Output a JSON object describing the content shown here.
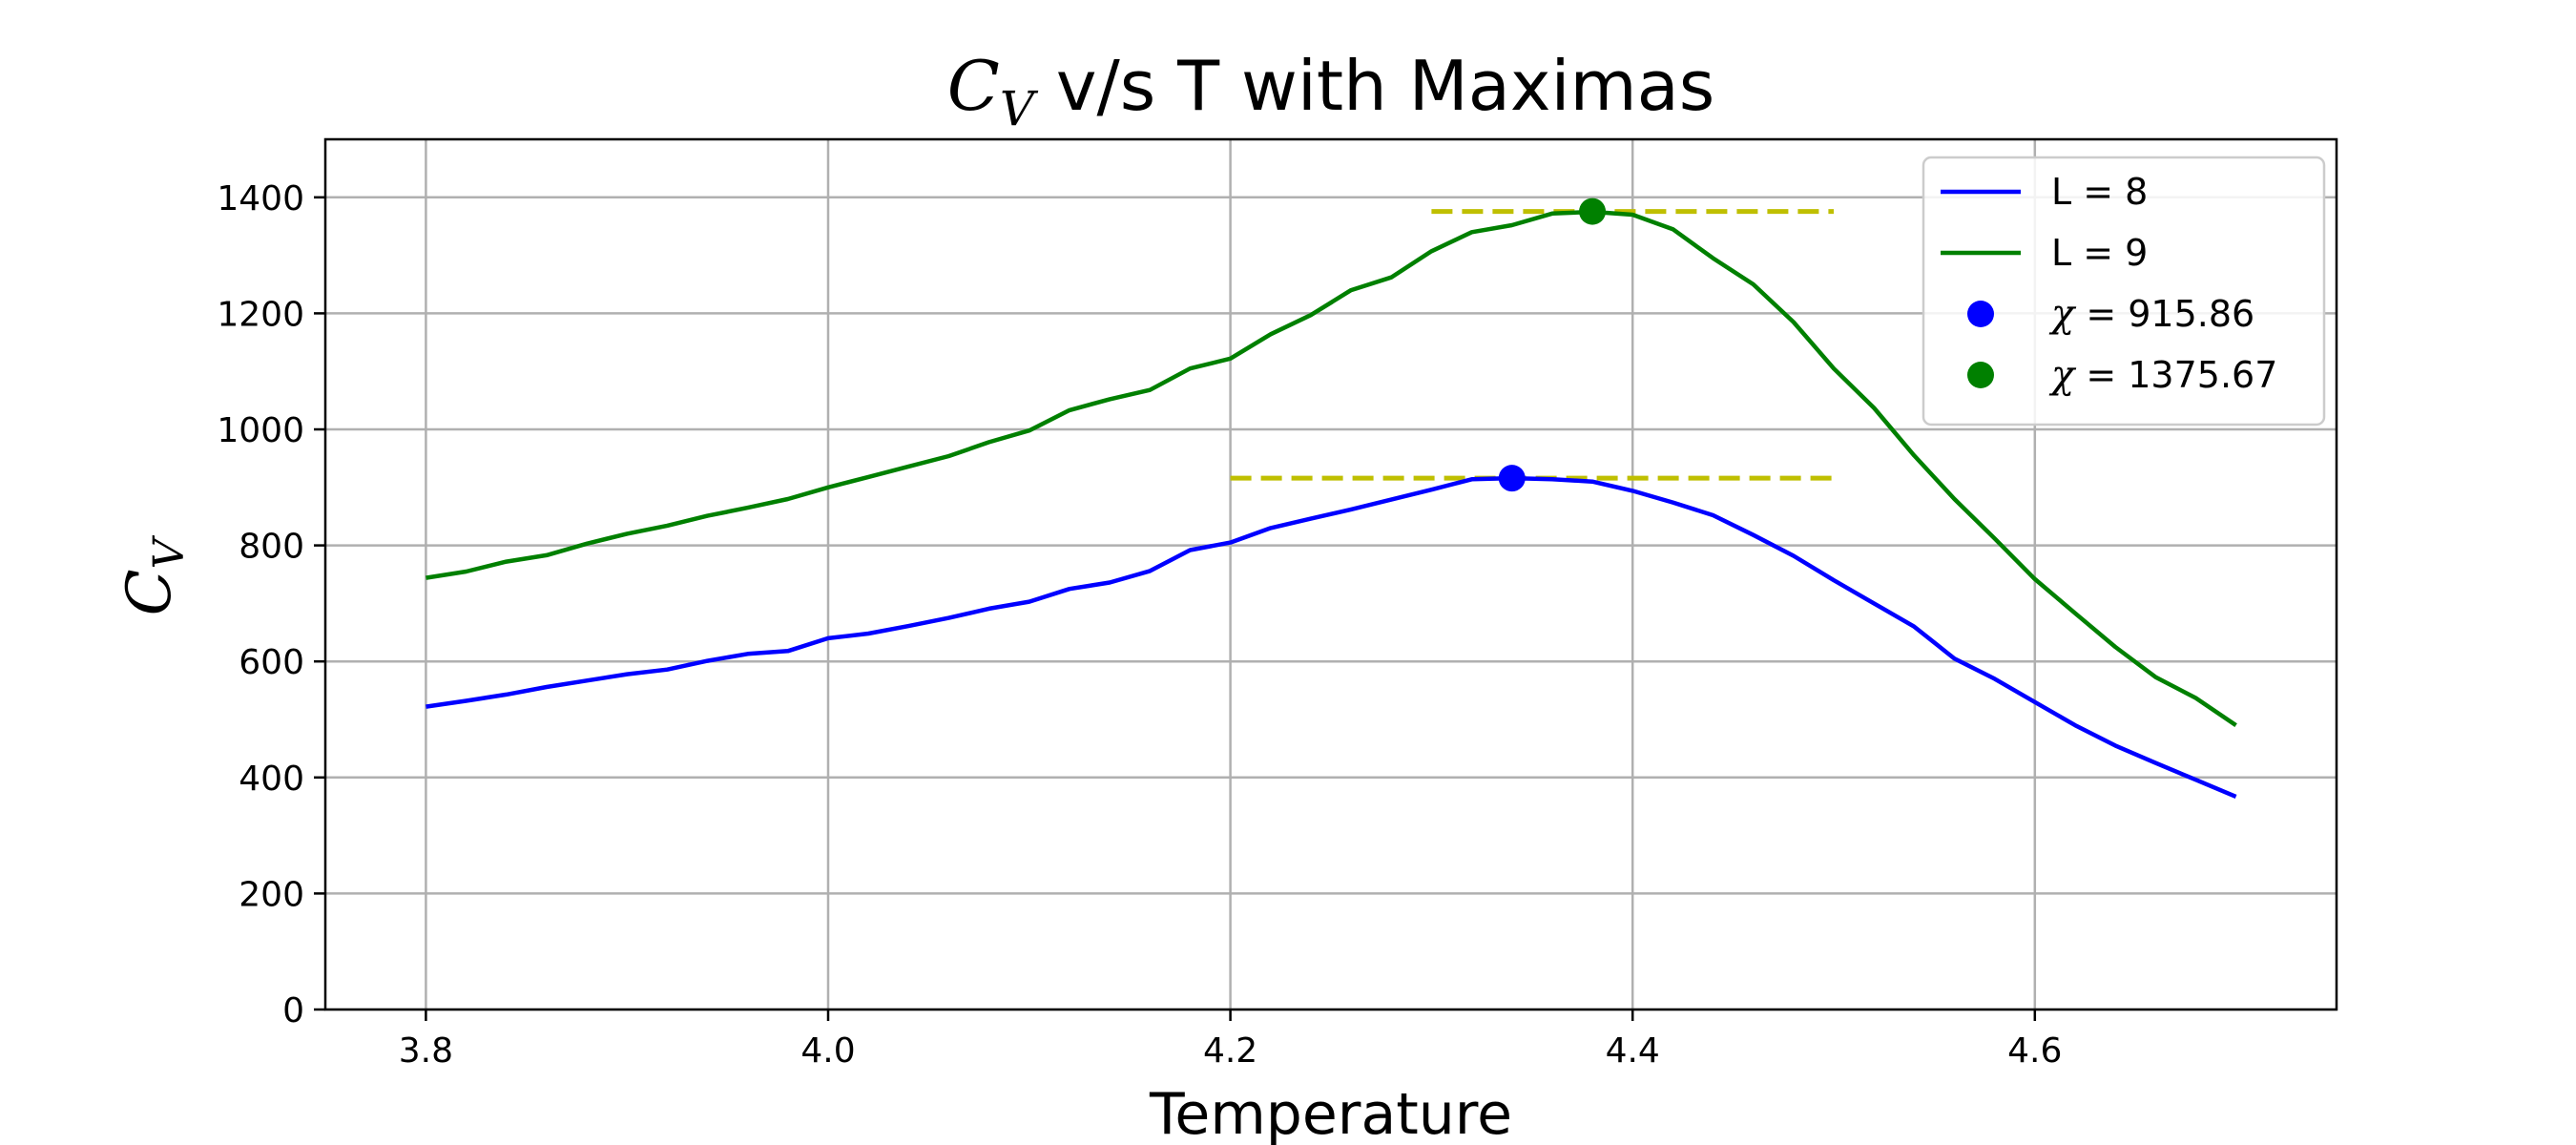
{
  "chart_data": {
    "type": "line",
    "title": {
      "symbol": "C",
      "subscript": "V",
      "rest": " v/s T with Maximas"
    },
    "xlabel": "Temperature",
    "ylabel": {
      "symbol": "C",
      "subscript": "V"
    },
    "xlim": [
      3.75,
      4.75
    ],
    "ylim": [
      0,
      1500
    ],
    "xticks": [
      3.8,
      4.0,
      4.2,
      4.4,
      4.6
    ],
    "xtick_labels": [
      "3.8",
      "4.0",
      "4.2",
      "4.4",
      "4.6"
    ],
    "yticks": [
      0,
      200,
      400,
      600,
      800,
      1000,
      1200,
      1400
    ],
    "ytick_labels": [
      "0",
      "200",
      "400",
      "600",
      "800",
      "1000",
      "1200",
      "1400"
    ],
    "grid": true,
    "legend_position": "top-right",
    "x": [
      3.8,
      3.82,
      3.84,
      3.86,
      3.88,
      3.9,
      3.92,
      3.94,
      3.96,
      3.98,
      4.0,
      4.02,
      4.04,
      4.06,
      4.08,
      4.1,
      4.12,
      4.14,
      4.16,
      4.18,
      4.2,
      4.22,
      4.24,
      4.26,
      4.28,
      4.3,
      4.32,
      4.34,
      4.36,
      4.38,
      4.4,
      4.42,
      4.44,
      4.46,
      4.48,
      4.5,
      4.52,
      4.54,
      4.56,
      4.58,
      4.6,
      4.62,
      4.64,
      4.66,
      4.68,
      4.7
    ],
    "series": [
      {
        "name": "L = 8",
        "color": "#0000ff",
        "values": [
          522,
          532,
          543,
          556,
          567,
          578,
          586,
          601,
          613,
          618,
          640,
          648,
          661,
          675,
          691,
          703,
          725,
          736,
          756,
          792,
          805,
          830,
          846,
          862,
          879,
          896,
          914,
          916,
          914,
          910,
          894,
          874,
          852,
          818,
          782,
          740,
          700,
          660,
          605,
          570,
          530,
          490,
          455,
          425,
          396,
          367
        ]
      },
      {
        "name": "L = 9",
        "color": "#008000",
        "values": [
          744,
          755,
          772,
          783,
          803,
          820,
          834,
          851,
          865,
          880,
          900,
          918,
          936,
          954,
          978,
          998,
          1033,
          1052,
          1068,
          1105,
          1122,
          1164,
          1197,
          1240,
          1262,
          1307,
          1340,
          1352,
          1372,
          1375,
          1370,
          1345,
          1295,
          1250,
          1185,
          1105,
          1037,
          955,
          880,
          812,
          742,
          683,
          625,
          573,
          537,
          490
        ]
      }
    ],
    "maxima": [
      {
        "label": "χ =  915.86",
        "x": 4.34,
        "y": 915.86,
        "color": "#0000ff",
        "hline_x": [
          4.2,
          4.5
        ]
      },
      {
        "label": "χ =  1375.67",
        "x": 4.38,
        "y": 1375.67,
        "color": "#008000",
        "hline_x": [
          4.3,
          4.5
        ]
      }
    ],
    "hline_color": "#bfbf00",
    "legend": [
      {
        "kind": "line",
        "label": "L = 8",
        "color": "#0000ff"
      },
      {
        "kind": "line",
        "label": "L = 9",
        "color": "#008000"
      },
      {
        "kind": "marker",
        "symbol": "χ",
        "value": "=  915.86",
        "color": "#0000ff"
      },
      {
        "kind": "marker",
        "symbol": "χ",
        "value": "=  1375.67",
        "color": "#008000"
      }
    ]
  }
}
